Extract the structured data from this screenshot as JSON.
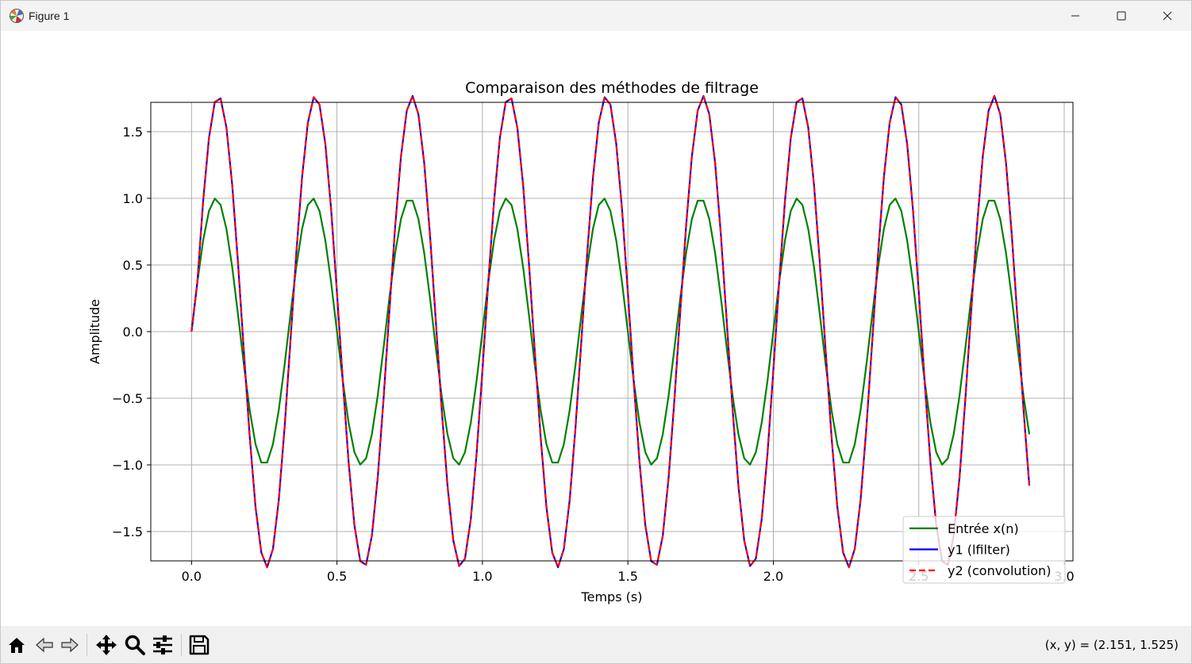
{
  "window": {
    "title": "Figure 1",
    "icons": {
      "app": "matplotlib-icon",
      "minimize": "minimize-icon",
      "maximize": "maximize-icon",
      "close": "close-icon"
    }
  },
  "toolbar": {
    "buttons": [
      {
        "name": "home-button",
        "icon": "home-icon"
      },
      {
        "name": "back-button",
        "icon": "back-arrow-icon"
      },
      {
        "name": "forward-button",
        "icon": "forward-arrow-icon"
      },
      {
        "name": "pan-button",
        "icon": "move-icon"
      },
      {
        "name": "zoom-button",
        "icon": "zoom-icon"
      },
      {
        "name": "configure-subplots-button",
        "icon": "sliders-icon"
      },
      {
        "name": "save-button",
        "icon": "save-icon"
      }
    ],
    "coords": "(x, y) = (2.151, 1.525)"
  },
  "chart_data": {
    "type": "line",
    "title": "Comparaison des méthodes de filtrage",
    "xlabel": "Temps (s)",
    "ylabel": "Amplitude",
    "xlim": [
      -0.14,
      3.03
    ],
    "ylim": [
      -1.72,
      1.72
    ],
    "xticks": [
      0.0,
      0.5,
      1.0,
      1.5,
      2.0,
      2.5,
      3.0
    ],
    "xtick_labels": [
      "0.0",
      "0.5",
      "1.0",
      "1.5",
      "2.0",
      "2.5",
      "3.0"
    ],
    "yticks": [
      -1.5,
      -1.0,
      -0.5,
      0.0,
      0.5,
      1.0,
      1.5
    ],
    "ytick_labels": [
      "−1.5",
      "−1.0",
      "−0.5",
      "0.0",
      "0.5",
      "1.0",
      "1.5"
    ],
    "grid": true,
    "legend_position": "lower right",
    "x": {
      "start": 0.0,
      "step": 0.02,
      "count": 145
    },
    "series": [
      {
        "name": "Entrée x(n)",
        "color": "#008000",
        "style": "solid",
        "model": "sin",
        "amplitude": 1.0,
        "frequency_hz": 3.0
      },
      {
        "name": "y1 (lfilter)",
        "color": "#0000ff",
        "style": "solid",
        "model": "sin_plus_shifted",
        "amplitude": 1.0,
        "frequency_hz": 3.0,
        "delay_samples": 1,
        "gain": 0.8
      },
      {
        "name": "y2 (convolution)",
        "color": "#ff0000",
        "style": "dashed",
        "model": "sin_plus_shifted",
        "amplitude": 1.0,
        "frequency_hz": 3.0,
        "delay_samples": 1,
        "gain": 0.8
      }
    ]
  }
}
